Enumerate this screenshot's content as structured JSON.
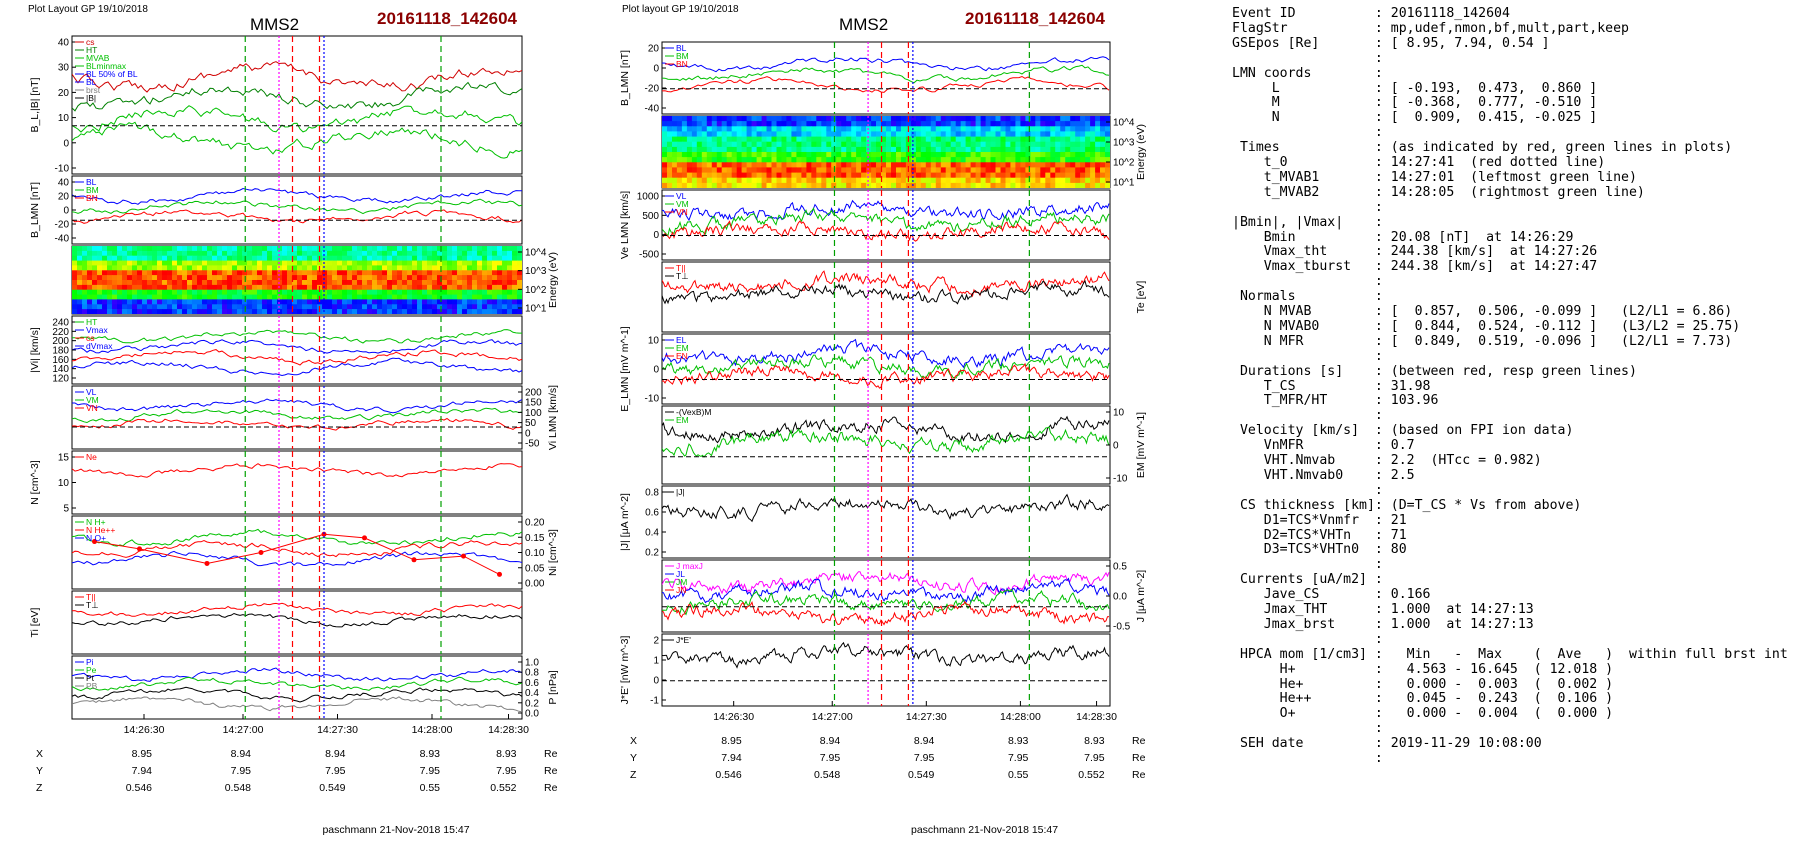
{
  "left_figure": {
    "header_left": "Plot Layout GP 19/10/2018",
    "title": "MMS2",
    "event_title": "20161118_142604",
    "footer": "paschmann 21-Nov-2018 15:47",
    "x_ticks": [
      "14:26:30",
      "14:27:00",
      "14:27:30",
      "14:28:00",
      "14:28:30"
    ],
    "position": {
      "labels": [
        "X",
        "Y",
        "Z"
      ],
      "unit": "Re",
      "rows": [
        [
          "8.95",
          "8.94",
          "8.94",
          "8.93",
          "8.93"
        ],
        [
          "7.94",
          "7.95",
          "7.95",
          "7.95",
          "7.95"
        ],
        [
          "0.546",
          "0.548",
          "0.549",
          "0.55",
          "0.552"
        ]
      ]
    },
    "panels": [
      {
        "id": "B_total",
        "ylabel": "B_L,|B| [nT]",
        "yticks": [
          "40",
          "30",
          "20",
          "10",
          "0",
          "-10"
        ],
        "legend": [
          "cs",
          "HT",
          "MVAB",
          "BLminmax",
          "BL 50% of BL",
          "BL",
          "brst",
          "|B|"
        ],
        "legend_colors": [
          "#d00000",
          "#008000",
          "#00c000",
          "#00c000",
          "#0000ff",
          "#0000ff",
          "#808080",
          "#000000"
        ]
      },
      {
        "id": "B_LMN",
        "ylabel": "B_LMN [nT]",
        "yticks": [
          "40",
          "20",
          "0",
          "-20",
          "-40"
        ],
        "legend": [
          "BL",
          "BM",
          "BN"
        ],
        "legend_colors": [
          "#0000ff",
          "#00c000",
          "#ff0000"
        ]
      },
      {
        "id": "spectrogram_ion",
        "ylabel_right": "Energy (eV)",
        "yticks_right": [
          "10^4",
          "10^3",
          "10^2",
          "10^1"
        ]
      },
      {
        "id": "Vi_abs",
        "ylabel": "|Vi| [km/s]",
        "yticks": [
          "240",
          "220",
          "200",
          "180",
          "160",
          "140",
          "120"
        ],
        "legend": [
          "HT",
          "Vmax",
          "cs",
          "dVmax"
        ],
        "legend_colors": [
          "#00c000",
          "#0000ff",
          "#ff0000",
          "#0000ff"
        ]
      },
      {
        "id": "Vi_LMN",
        "ylabel_right": "Vi LMN [km/s]",
        "yticks_right": [
          "200",
          "150",
          "100",
          "50",
          "0",
          "-50"
        ],
        "legend": [
          "VL",
          "VM",
          "VN"
        ],
        "legend_colors": [
          "#0000ff",
          "#00c000",
          "#ff0000"
        ]
      },
      {
        "id": "N",
        "ylabel": "N [cm^-3]",
        "yticks": [
          "15",
          "10",
          "5"
        ],
        "legend": [
          "Ne"
        ],
        "legend_colors": [
          "#ff0000"
        ]
      },
      {
        "id": "N_hpca",
        "ylabel_right": "Ni [cm^-3]",
        "yticks_right": [
          "0.20",
          "0.15",
          "0.10",
          "0.05",
          "0.00"
        ],
        "legend": [
          "N H+",
          "N He++",
          "N O+"
        ],
        "legend_colors": [
          "#00c000",
          "#ff0000",
          "#0000ff"
        ]
      },
      {
        "id": "Ti",
        "ylabel": "Ti [eV]",
        "legend": [
          "T||",
          "T⊥"
        ],
        "legend_colors": [
          "#ff0000",
          "#000000"
        ]
      },
      {
        "id": "P",
        "ylabel_right": "P [nPa]",
        "yticks_right": [
          "1.0",
          "0.8",
          "0.6",
          "0.4",
          "0.2",
          "0.0"
        ],
        "legend": [
          "Pi",
          "Pe",
          "Pt",
          "PB"
        ],
        "legend_colors": [
          "#0000ff",
          "#00c000",
          "#000000",
          "#808080"
        ]
      }
    ]
  },
  "right_figure": {
    "header_left": "Plot layout GP 19/10/2018",
    "title": "MMS2",
    "event_title": "20161118_142604",
    "footer": "paschmann 21-Nov-2018 15:47",
    "x_ticks": [
      "14:26:30",
      "14:27:00",
      "14:27:30",
      "14:28:00",
      "14:28:30"
    ],
    "position": {
      "labels": [
        "X",
        "Y",
        "Z"
      ],
      "unit": "Re",
      "rows": [
        [
          "8.95",
          "8.94",
          "8.94",
          "8.93",
          "8.93"
        ],
        [
          "7.94",
          "7.95",
          "7.95",
          "7.95",
          "7.95"
        ],
        [
          "0.546",
          "0.548",
          "0.549",
          "0.55",
          "0.552"
        ]
      ]
    },
    "panels": [
      {
        "id": "B_LMN",
        "ylabel": "B_LMN [nT]",
        "yticks": [
          "20",
          "0",
          "-20",
          "-40"
        ],
        "legend": [
          "BL",
          "BM",
          "BN"
        ],
        "legend_colors": [
          "#0000ff",
          "#00c000",
          "#ff0000"
        ]
      },
      {
        "id": "spectrogram_electron",
        "ylabel_right": "Energy (eV)",
        "yticks_right": [
          "10^4",
          "10^3",
          "10^2",
          "10^1"
        ]
      },
      {
        "id": "Ve_LMN",
        "ylabel": "Ve LMN [km/s]",
        "yticks": [
          "1000",
          "500",
          "0",
          "-500"
        ],
        "legend": [
          "VL",
          "VM",
          "VN"
        ],
        "legend_colors": [
          "#0000ff",
          "#00c000",
          "#ff0000"
        ]
      },
      {
        "id": "Te",
        "ylabel_right": "Te [eV]",
        "legend": [
          "T||",
          "T⊥"
        ],
        "legend_colors": [
          "#ff0000",
          "#000000"
        ]
      },
      {
        "id": "E_LMN",
        "ylabel": "E_LMN [mV m^-1]",
        "yticks": [
          "10",
          "0",
          "-10"
        ],
        "legend": [
          "EL",
          "EM",
          "EN"
        ],
        "legend_colors": [
          "#0000ff",
          "#00c000",
          "#ff0000"
        ]
      },
      {
        "id": "EM",
        "ylabel_right": "EM [mV m^-1]",
        "yticks_right": [
          "10",
          "0",
          "-10"
        ],
        "legend": [
          "-(VexB)M",
          "EM"
        ],
        "legend_colors": [
          "#000000",
          "#00c000"
        ]
      },
      {
        "id": "J_abs",
        "ylabel": "|J| [μA m^-2]",
        "yticks": [
          "0.8",
          "0.6",
          "0.4",
          "0.2"
        ],
        "legend": [
          "|J|"
        ],
        "legend_colors": [
          "#000000"
        ]
      },
      {
        "id": "J_LMN",
        "ylabel_right": "J [μA m^-2]",
        "yticks_right": [
          "0.5",
          "0.0",
          "-0.5"
        ],
        "legend": [
          "J maxJ",
          "JL",
          "JM",
          "JN"
        ],
        "legend_colors": [
          "#ff00ff",
          "#0000ff",
          "#00c000",
          "#ff0000"
        ]
      },
      {
        "id": "JdotE",
        "ylabel": "J*E' [nW m^-3]",
        "yticks": [
          "2",
          "1",
          "0",
          "-1"
        ],
        "legend": [
          "J*E'"
        ],
        "legend_colors": [
          "#000000"
        ]
      }
    ]
  },
  "summary": {
    "lines": [
      "Event ID          : 20161118_142604",
      "FlagStr           : mp,udef,nmon,bf,mult,part,keep",
      "GSEpos [Re]       : [ 8.95, 7.94, 0.54 ]",
      "                  :",
      "LMN coords        :",
      "     L            : [ -0.193,  0.473,  0.860 ]",
      "     M            : [ -0.368,  0.777, -0.510 ]",
      "     N            : [  0.909,  0.415, -0.025 ]",
      "                  :",
      " Times            : (as indicated by red, green lines in plots)",
      "    t_0           : 14:27:41  (red dotted line)",
      "    t_MVAB1       : 14:27:01  (leftmost green line)",
      "    t_MVAB2       : 14:28:05  (rightmost green line)",
      "                  :",
      "|Bmin|, |Vmax|    :",
      "    Bmin          : 20.08 [nT]  at 14:26:29",
      "    Vmax_tht      : 244.38 [km/s]  at 14:27:26",
      "    Vmax_tburst   : 244.38 [km/s]  at 14:27:47",
      "                  :",
      " Normals          :",
      "    N MVAB        : [  0.857,  0.506, -0.099 ]   (L2/L1 = 6.86)",
      "    N MVAB0       : [  0.844,  0.524, -0.112 ]   (L3/L2 = 25.75)",
      "    N MFR         : [  0.849,  0.519, -0.096 ]   (L2/L1 = 7.73)",
      "                  :",
      " Durations [s]    : (between red, resp green lines)",
      "    T_CS          : 31.98",
      "    T_MFR/HT      : 103.96",
      "                  :",
      " Velocity [km/s]  : (based on FPI ion data)",
      "    VnMFR         : 0.7",
      "    VHT.Nmvab     : 2.2  (HTcc = 0.982)",
      "    VHT.Nmvab0    : 2.5",
      "                  :",
      " CS thickness [km]: (D=T_CS * Vs from above)",
      "    D1=TCS*Vnmfr  : 21",
      "    D2=TCS*VHTn   : 71",
      "    D3=TCS*VHTn0  : 80",
      "                  :",
      " Currents [uA/m2] :",
      "    Jave_CS       : 0.166",
      "    Jmax_THT      : 1.000  at 14:27:13",
      "    Jmax_brst     : 1.000  at 14:27:13",
      "                  :",
      " HPCA mom [1/cm3] :   Min   -  Max    (  Ave   )  within full brst int",
      "      H+          :   4.563 - 16.645  ( 12.018 )",
      "      He+         :   0.000 -  0.003  (  0.002 )",
      "      He++        :   0.045 -  0.243  (  0.106 )",
      "      O+          :   0.000 -  0.004  (  0.000 )",
      "                  :",
      " SEH date         : 2019-11-29 10:08:00",
      "                  :"
    ]
  },
  "colors": {
    "red_title": "#8b0000",
    "red": "#ff0000",
    "green": "#00a000",
    "blue": "#0000ff",
    "magenta": "#ff00ff",
    "black": "#000000"
  }
}
